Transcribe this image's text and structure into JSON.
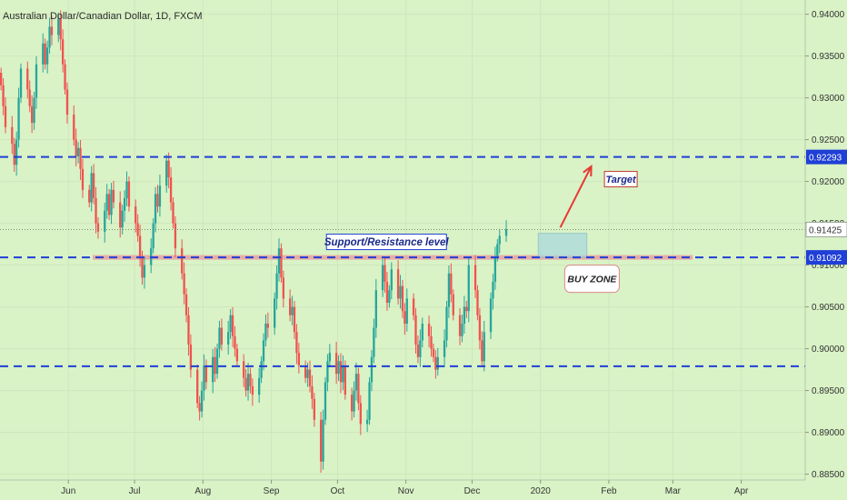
{
  "colors": {
    "background": "#d9f2c6",
    "up": "#26a69a",
    "down": "#ef5350",
    "hline": "#1f3fd6",
    "arrow": "#e53935",
    "support_band": "#e8a0a0",
    "buy_zone": "#a8d8e0",
    "price_tag": "#1f3fd6"
  },
  "chart_data": {
    "type": "candlestick",
    "title": "Australian Dollar/Canadian Dollar, 1D, FXCM",
    "x_ticks": [
      "Jun",
      "Jul",
      "Aug",
      "Sep",
      "Oct",
      "Nov",
      "Dec",
      "2020",
      "Feb",
      "Mar",
      "Apr"
    ],
    "y_ticks": [
      "0.94000",
      "0.93500",
      "0.93000",
      "0.92500",
      "0.92000",
      "0.91500",
      "0.91000",
      "0.90500",
      "0.90000",
      "0.89500",
      "0.89000",
      "0.88500"
    ],
    "ylim": [
      0.8843,
      0.9417
    ],
    "current_price_label": "0.91425",
    "current_price": 0.91425,
    "levels": [
      {
        "value": 0.92293,
        "label": "0.92293",
        "tagged": true
      },
      {
        "value": 0.91092,
        "label": "0.91092",
        "tagged": true
      },
      {
        "value": 0.8979,
        "label": "",
        "tagged": false
      }
    ],
    "annotations": {
      "support_label": "Support/Resistance level",
      "target_label": "Target",
      "buy_zone_label": "BUY ZONE"
    },
    "closes": [
      0.9315,
      0.929,
      0.9265,
      0.9245,
      0.922,
      0.925,
      0.93,
      0.9335,
      0.931,
      0.929,
      0.927,
      0.93,
      0.934,
      0.9365,
      0.934,
      0.936,
      0.9385,
      0.9375,
      0.9395,
      0.937,
      0.934,
      0.931,
      0.928,
      0.925,
      0.923,
      0.924,
      0.9215,
      0.919,
      0.9175,
      0.921,
      0.918,
      0.915,
      0.914,
      0.9165,
      0.9185,
      0.916,
      0.919,
      0.9175,
      0.9145,
      0.9165,
      0.918,
      0.92,
      0.917,
      0.915,
      0.9135,
      0.911,
      0.9085,
      0.91,
      0.912,
      0.915,
      0.9185,
      0.917,
      0.9195,
      0.9225,
      0.9205,
      0.9175,
      0.915,
      0.912,
      0.909,
      0.9065,
      0.904,
      0.9005,
      0.8975,
      0.8935,
      0.8925,
      0.895,
      0.898,
      0.896,
      0.899,
      0.897,
      0.9,
      0.9025,
      0.9005,
      0.902,
      0.904,
      0.9015,
      0.9,
      0.8985,
      0.8965,
      0.895,
      0.897,
      0.8955,
      0.8945,
      0.8965,
      0.8985,
      0.901,
      0.903,
      0.9025,
      0.906,
      0.909,
      0.912,
      0.9085,
      0.906,
      0.904,
      0.905,
      0.902,
      0.8995,
      0.898,
      0.8965,
      0.8975,
      0.8955,
      0.894,
      0.8915,
      0.8865,
      0.8915,
      0.896,
      0.8985,
      0.8995,
      0.897,
      0.8985,
      0.896,
      0.898,
      0.8945,
      0.8925,
      0.895,
      0.897,
      0.8935,
      0.891,
      0.8915,
      0.896,
      0.899,
      0.9025,
      0.907,
      0.91,
      0.908,
      0.9055,
      0.907,
      0.9095,
      0.906,
      0.9075,
      0.9045,
      0.903,
      0.906,
      0.904,
      0.9005,
      0.899,
      0.901,
      0.903,
      0.9015,
      0.9,
      0.899,
      0.8975,
      0.899,
      0.901,
      0.905,
      0.909,
      0.9065,
      0.904,
      0.9015,
      0.903,
      0.905,
      0.9045,
      0.91,
      0.907,
      0.904,
      0.901,
      0.8985,
      0.902,
      0.906,
      0.908,
      0.911,
      0.9125,
      0.9135,
      0.9143
    ],
    "x_range": {
      "start": "2019-05-01",
      "end": "2020-04-30"
    }
  }
}
